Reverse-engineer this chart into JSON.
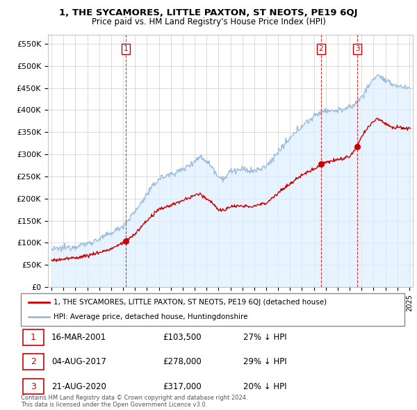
{
  "title": "1, THE SYCAMORES, LITTLE PAXTON, ST NEOTS, PE19 6QJ",
  "subtitle": "Price paid vs. HM Land Registry's House Price Index (HPI)",
  "yticks": [
    0,
    50000,
    100000,
    150000,
    200000,
    250000,
    300000,
    350000,
    400000,
    450000,
    500000,
    550000
  ],
  "ytick_labels": [
    "£0",
    "£50K",
    "£100K",
    "£150K",
    "£200K",
    "£250K",
    "£300K",
    "£350K",
    "£400K",
    "£450K",
    "£500K",
    "£550K"
  ],
  "xlim_start": 1994.7,
  "xlim_end": 2025.3,
  "ylim_min": 0,
  "ylim_max": 570000,
  "transaction_color": "#cc0000",
  "hpi_color": "#99bbdd",
  "hpi_fill_color": "#ddeeff",
  "transactions": [
    {
      "date": 2001.21,
      "price": 103500,
      "label": "1"
    },
    {
      "date": 2017.59,
      "price": 278000,
      "label": "2"
    },
    {
      "date": 2020.65,
      "price": 317000,
      "label": "3"
    }
  ],
  "legend_entries": [
    "1, THE SYCAMORES, LITTLE PAXTON, ST NEOTS, PE19 6QJ (detached house)",
    "HPI: Average price, detached house, Huntingdonshire"
  ],
  "table_rows": [
    {
      "num": "1",
      "date": "16-MAR-2001",
      "price": "£103,500",
      "pct": "27% ↓ HPI"
    },
    {
      "num": "2",
      "date": "04-AUG-2017",
      "price": "£278,000",
      "pct": "29% ↓ HPI"
    },
    {
      "num": "3",
      "date": "21-AUG-2020",
      "price": "£317,000",
      "pct": "20% ↓ HPI"
    }
  ],
  "footnote1": "Contains HM Land Registry data © Crown copyright and database right 2024.",
  "footnote2": "This data is licensed under the Open Government Licence v3.0.",
  "background_color": "#ffffff",
  "plot_bg_color": "#ffffff",
  "grid_color": "#cccccc"
}
